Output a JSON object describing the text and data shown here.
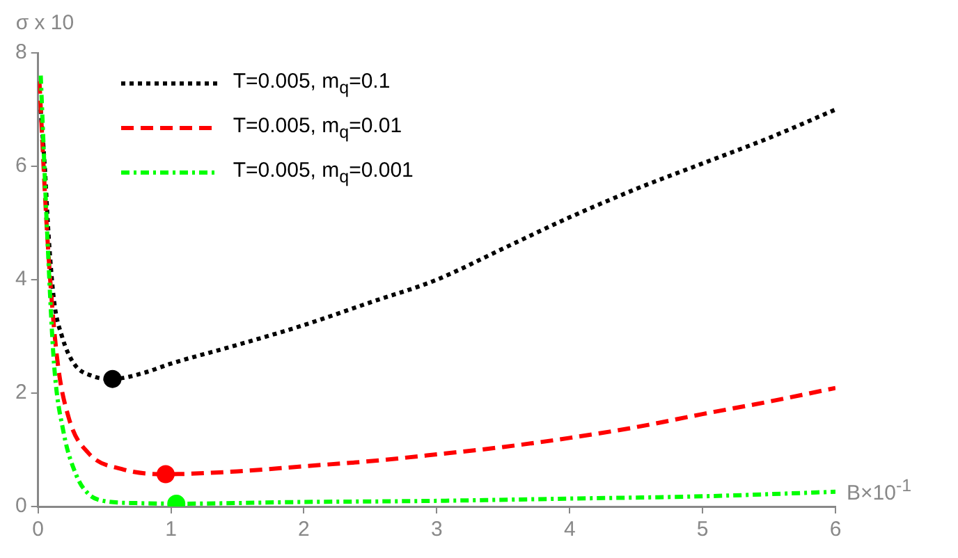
{
  "chart_data": {
    "type": "line",
    "xlabel": "B×10$^{-1}$",
    "ylabel": "σ x 10",
    "xlim": [
      0,
      6
    ],
    "xticks": [
      0,
      1,
      2,
      3,
      4,
      5,
      6
    ],
    "ylim": [
      0,
      8
    ],
    "yticks": [
      0,
      2,
      4,
      6,
      8
    ],
    "grid": false,
    "legend": "top left",
    "series": [
      {
        "name": "T=0.005, m$_{q}$=0.1",
        "color": "#000000",
        "line_style": "dotted",
        "x": [
          0.02,
          0.05,
          0.08,
          0.12,
          0.18,
          0.27,
          0.41,
          0.56,
          0.8,
          1,
          1.5,
          2,
          2.5,
          3,
          3.5,
          4,
          4.5,
          5,
          5.5,
          6
        ],
        "values": [
          7.0,
          6.0,
          4.75,
          3.63,
          3.0,
          2.52,
          2.3,
          2.25,
          2.36,
          2.52,
          2.85,
          3.2,
          3.6,
          4.0,
          4.55,
          5.1,
          5.6,
          6.05,
          6.5,
          7.0
        ]
      },
      {
        "name": "T=0.005, m$_{q}$=0.01",
        "color": "#ff0000",
        "line_style": "dashed",
        "x": [
          0.01,
          0.07,
          0.14,
          0.23,
          0.38,
          0.63,
          0.96,
          1.5,
          2,
          2.5,
          3,
          3.5,
          4,
          4.5,
          5,
          5.5,
          6
        ],
        "values": [
          7.5,
          4.75,
          2.68,
          1.57,
          0.94,
          0.66,
          0.57,
          0.62,
          0.71,
          0.8,
          0.92,
          1.05,
          1.21,
          1.4,
          1.63,
          1.85,
          2.09
        ]
      },
      {
        "name": "T=0.005, m$_{q}$=0.001",
        "color": "#00ff00",
        "line_style": "dashdot",
        "x": [
          0.02,
          0.07,
          0.12,
          0.19,
          0.29,
          0.38,
          0.49,
          0.74,
          1.04,
          2,
          3,
          4,
          5,
          6
        ],
        "values": [
          7.6,
          4.75,
          2.52,
          1.33,
          0.54,
          0.22,
          0.1,
          0.06,
          0.05,
          0.08,
          0.1,
          0.14,
          0.18,
          0.26
        ]
      },
      {
        "type": "scatter",
        "marker": "circle",
        "color": "#000000",
        "x": [
          0.56
        ],
        "values": [
          2.25
        ]
      },
      {
        "type": "scatter",
        "marker": "circle",
        "color": "#ff0000",
        "x": [
          0.96
        ],
        "values": [
          0.57
        ]
      },
      {
        "type": "scatter",
        "marker": "circle",
        "color": "#00ff00",
        "x": [
          1.04
        ],
        "values": [
          0.05
        ]
      }
    ]
  }
}
